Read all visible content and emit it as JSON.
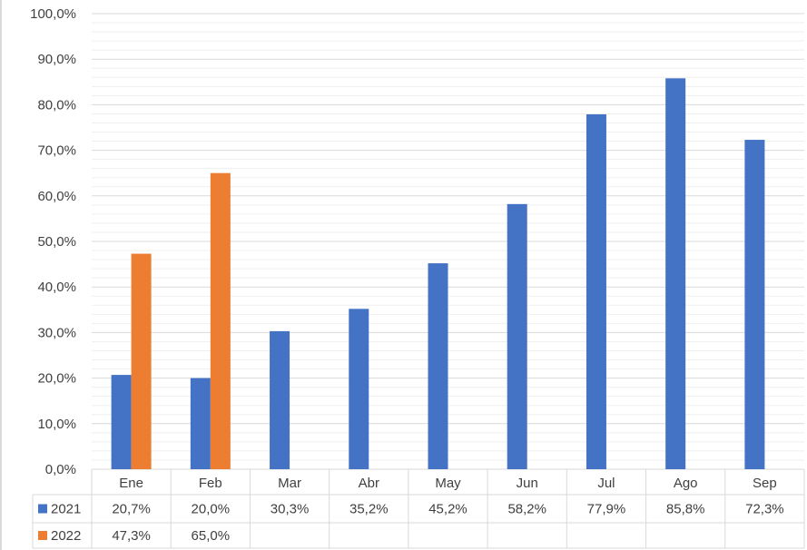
{
  "chart_data": {
    "type": "bar",
    "categories": [
      "Ene",
      "Feb",
      "Mar",
      "Abr",
      "May",
      "Jun",
      "Jul",
      "Ago",
      "Sep"
    ],
    "series": [
      {
        "name": "2021",
        "color": "#4472C4",
        "values": [
          20.7,
          20.0,
          30.3,
          35.2,
          45.2,
          58.2,
          77.9,
          85.8,
          72.3
        ],
        "labels": [
          "20,7%",
          "20,0%",
          "30,3%",
          "35,2%",
          "45,2%",
          "58,2%",
          "77,9%",
          "85,8%",
          "72,3%"
        ]
      },
      {
        "name": "2022",
        "color": "#ED7D31",
        "values": [
          47.3,
          65.0,
          null,
          null,
          null,
          null,
          null,
          null,
          null
        ],
        "labels": [
          "47,3%",
          "65,0%",
          "",
          "",
          "",
          "",
          "",
          "",
          ""
        ]
      }
    ],
    "ylim": [
      0,
      100
    ],
    "yticks": [
      0,
      10,
      20,
      30,
      40,
      50,
      60,
      70,
      80,
      90,
      100
    ],
    "ytick_labels": [
      "0,0%",
      "10,0%",
      "20,0%",
      "30,0%",
      "40,0%",
      "50,0%",
      "60,0%",
      "70,0%",
      "80,0%",
      "90,0%",
      "100,0%"
    ],
    "grid": true,
    "minor_grid": true,
    "legend": "data-table",
    "data_table": true
  }
}
